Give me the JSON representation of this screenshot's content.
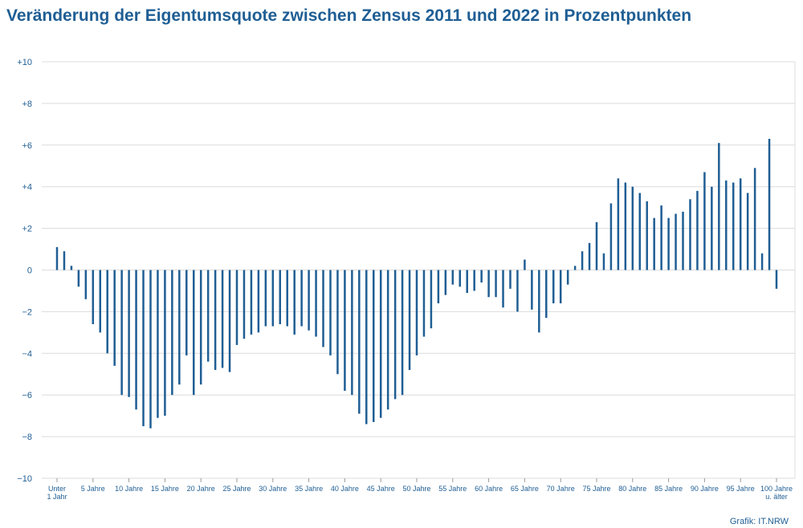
{
  "title": "Veränderung der Eigentumsquote zwischen Zensus 2011 und 2022 in Prozentpunkten",
  "credit": "Grafik: IT.NRW",
  "colors": {
    "bar": "#1f5e94",
    "text": "#1f5e94",
    "grid": "#dcdcdc"
  },
  "chart_data": {
    "type": "bar",
    "title": "Veränderung der Eigentumsquote zwischen Zensus 2011 und 2022 in Prozentpunkten",
    "ylim": [
      -10,
      10
    ],
    "yticks": [
      "+10",
      "+8",
      "+6",
      "+4",
      "+2",
      "0",
      "−2",
      "−4",
      "−6",
      "−8",
      "−10"
    ],
    "ytick_values": [
      10,
      8,
      6,
      4,
      2,
      0,
      -2,
      -4,
      -6,
      -8,
      -10
    ],
    "grid": true,
    "categories_note": "101 Altersjahre: Unter 1 Jahr, 1 … 99 Jahre, 100 Jahre u. älter",
    "xticks": [
      {
        "index": 0,
        "label": [
          "Unter",
          "1 Jahr"
        ]
      },
      {
        "index": 5,
        "label": [
          "5 Jahre"
        ]
      },
      {
        "index": 10,
        "label": [
          "10 Jahre"
        ]
      },
      {
        "index": 15,
        "label": [
          "15 Jahre"
        ]
      },
      {
        "index": 20,
        "label": [
          "20 Jahre"
        ]
      },
      {
        "index": 25,
        "label": [
          "25 Jahre"
        ]
      },
      {
        "index": 30,
        "label": [
          "30 Jahre"
        ]
      },
      {
        "index": 35,
        "label": [
          "35 Jahre"
        ]
      },
      {
        "index": 40,
        "label": [
          "40 Jahre"
        ]
      },
      {
        "index": 45,
        "label": [
          "45 Jahre"
        ]
      },
      {
        "index": 50,
        "label": [
          "50 Jahre"
        ]
      },
      {
        "index": 55,
        "label": [
          "55 Jahre"
        ]
      },
      {
        "index": 60,
        "label": [
          "60 Jahre"
        ]
      },
      {
        "index": 65,
        "label": [
          "65 Jahre"
        ]
      },
      {
        "index": 70,
        "label": [
          "70 Jahre"
        ]
      },
      {
        "index": 75,
        "label": [
          "75 Jahre"
        ]
      },
      {
        "index": 80,
        "label": [
          "80 Jahre"
        ]
      },
      {
        "index": 85,
        "label": [
          "85 Jahre"
        ]
      },
      {
        "index": 90,
        "label": [
          "90 Jahre"
        ]
      },
      {
        "index": 95,
        "label": [
          "95 Jahre"
        ]
      },
      {
        "index": 100,
        "label": [
          "100 Jahre",
          "u. älter"
        ]
      }
    ],
    "values": [
      1.1,
      0.9,
      0.2,
      -0.8,
      -1.4,
      -2.6,
      -3.0,
      -4.0,
      -4.6,
      -6.0,
      -6.1,
      -6.7,
      -7.5,
      -7.6,
      -7.1,
      -7.0,
      -6.0,
      -5.5,
      -4.1,
      -6.0,
      -5.5,
      -4.4,
      -4.8,
      -4.7,
      -4.9,
      -3.6,
      -3.3,
      -3.1,
      -3.0,
      -2.7,
      -2.7,
      -2.6,
      -2.7,
      -3.1,
      -2.7,
      -2.9,
      -3.2,
      -3.7,
      -4.1,
      -5.0,
      -5.8,
      -6.0,
      -6.9,
      -7.4,
      -7.3,
      -7.1,
      -6.7,
      -6.2,
      -6.0,
      -4.8,
      -4.1,
      -3.2,
      -2.8,
      -1.6,
      -1.2,
      -0.7,
      -0.8,
      -1.1,
      -1.0,
      -0.6,
      -1.3,
      -1.3,
      -1.8,
      -0.9,
      -2.0,
      0.5,
      -1.9,
      -3.0,
      -2.3,
      -1.6,
      -1.6,
      -0.7,
      0.2,
      0.9,
      1.3,
      2.3,
      0.8,
      3.2,
      4.4,
      4.2,
      4.0,
      3.7,
      3.3,
      2.5,
      3.1,
      2.5,
      2.7,
      2.8,
      3.4,
      3.8,
      4.7,
      4.0,
      6.1,
      4.3,
      4.2,
      4.4,
      3.7,
      4.9,
      0.8,
      6.3,
      -0.9
    ]
  }
}
